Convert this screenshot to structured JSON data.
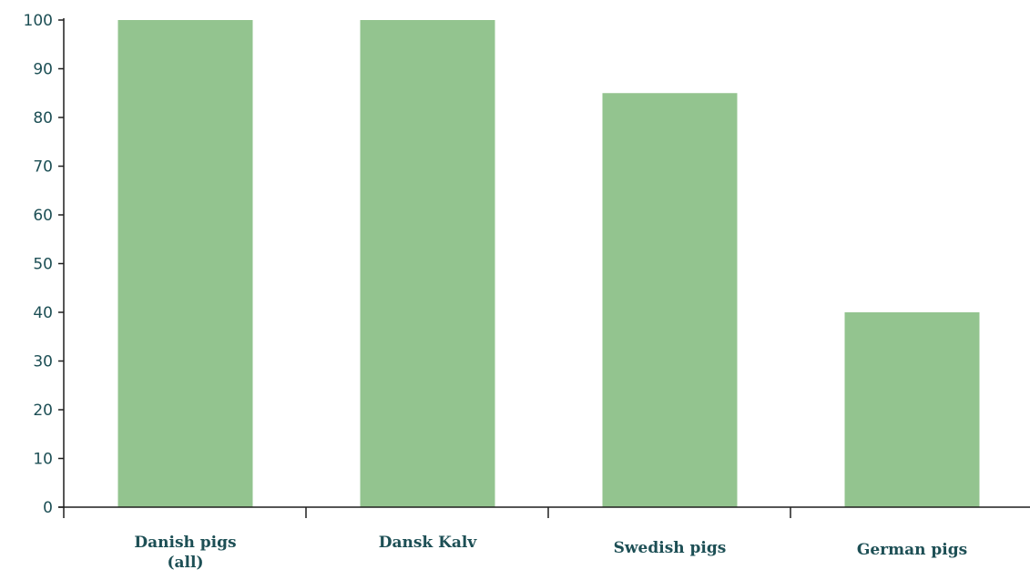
{
  "chart_data": {
    "type": "bar",
    "title": "",
    "xlabel": "",
    "ylabel": "",
    "ylim": [
      0,
      100
    ],
    "yticks": [
      0,
      10,
      20,
      30,
      40,
      50,
      60,
      70,
      80,
      90,
      100
    ],
    "grid": false,
    "legend": "none",
    "categories": [
      [
        "Danish pigs",
        "(all)"
      ],
      [
        "Dansk Kalv"
      ],
      [
        "Swedish pigs"
      ],
      [
        "German pigs"
      ]
    ],
    "values": [
      100,
      100,
      85,
      40
    ]
  },
  "colors": {
    "bar": "#93c48f",
    "axis": "#1f1f1f",
    "text": "#1d4f55"
  }
}
